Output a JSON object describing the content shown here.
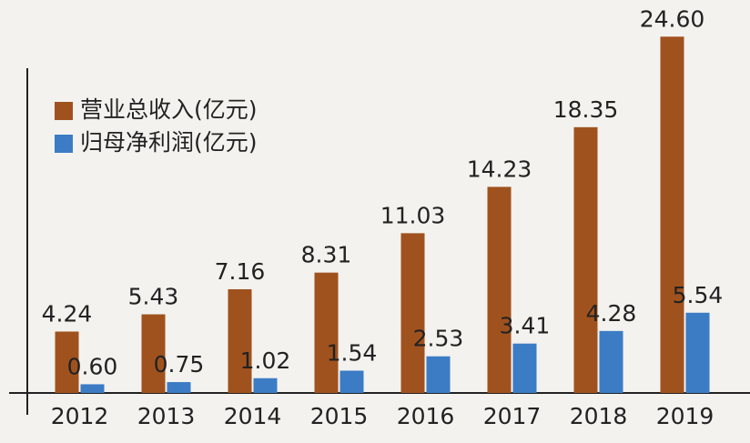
{
  "chart_data": {
    "type": "bar",
    "categories": [
      "2012",
      "2013",
      "2014",
      "2015",
      "2016",
      "2017",
      "2018",
      "2019"
    ],
    "series": [
      {
        "name": "营业总收入(亿元)",
        "color": "#a0521e",
        "values": [
          4.24,
          5.43,
          7.16,
          8.31,
          11.03,
          14.23,
          18.35,
          24.6
        ],
        "value_labels": [
          "4.24",
          "5.43",
          "7.16",
          "8.31",
          "11.03",
          "14.23",
          "18.35",
          "24.60"
        ]
      },
      {
        "name": "归母净利润(亿元)",
        "color": "#3b7cc4",
        "values": [
          0.6,
          0.75,
          1.02,
          1.54,
          2.53,
          3.41,
          4.28,
          5.54
        ],
        "value_labels": [
          "0.60",
          "0.75",
          "1.02",
          "1.54",
          "2.53",
          "3.41",
          "4.28",
          "5.54"
        ]
      }
    ],
    "ylim": [
      0,
      26
    ]
  }
}
